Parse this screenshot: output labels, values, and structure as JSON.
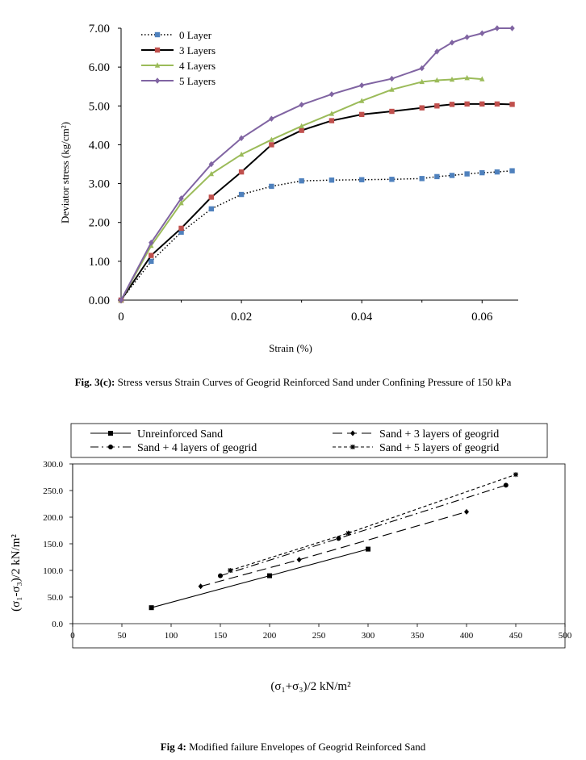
{
  "chart_data": [
    {
      "type": "line",
      "title": "",
      "xlabel": "Strain (%)",
      "ylabel": "Deviator stress  (kg/cm²)",
      "xlim": [
        0,
        0.066
      ],
      "ylim": [
        0,
        7
      ],
      "x_ticks": [
        "0",
        "0.02",
        "0.04",
        "0.06"
      ],
      "x_tick_values": [
        0,
        0.02,
        0.04,
        0.06
      ],
      "y_ticks": [
        "0.00",
        "1.00",
        "2.00",
        "3.00",
        "4.00",
        "5.00",
        "6.00",
        "7.00"
      ],
      "y_tick_values": [
        0,
        1,
        2,
        3,
        4,
        5,
        6,
        7
      ],
      "grid": false,
      "legend_position": "top-left",
      "series": [
        {
          "name": "0 Layer",
          "color": "#4f81bd",
          "line_color": "#000000",
          "line_style": "dotted",
          "marker": "square",
          "points": [
            [
              0,
              0
            ],
            [
              0.005,
              1.0
            ],
            [
              0.01,
              1.75
            ],
            [
              0.015,
              2.35
            ],
            [
              0.02,
              2.72
            ],
            [
              0.025,
              2.93
            ],
            [
              0.03,
              3.07
            ],
            [
              0.035,
              3.09
            ],
            [
              0.04,
              3.1
            ],
            [
              0.045,
              3.11
            ],
            [
              0.05,
              3.13
            ],
            [
              0.0525,
              3.18
            ],
            [
              0.055,
              3.21
            ],
            [
              0.0575,
              3.25
            ],
            [
              0.06,
              3.28
            ],
            [
              0.0625,
              3.3
            ],
            [
              0.065,
              3.33
            ]
          ]
        },
        {
          "name": "3 Layers",
          "color": "#c0504d",
          "line_color": "#000000",
          "line_style": "solid",
          "marker": "square",
          "points": [
            [
              0,
              0
            ],
            [
              0.005,
              1.15
            ],
            [
              0.01,
              1.85
            ],
            [
              0.015,
              2.65
            ],
            [
              0.02,
              3.3
            ],
            [
              0.025,
              4.0
            ],
            [
              0.03,
              4.37
            ],
            [
              0.035,
              4.62
            ],
            [
              0.04,
              4.78
            ],
            [
              0.045,
              4.86
            ],
            [
              0.05,
              4.95
            ],
            [
              0.0525,
              5.0
            ],
            [
              0.055,
              5.04
            ],
            [
              0.0575,
              5.05
            ],
            [
              0.06,
              5.05
            ],
            [
              0.0625,
              5.05
            ],
            [
              0.065,
              5.04
            ]
          ]
        },
        {
          "name": "4 Layers",
          "color": "#9bbb59",
          "line_color": "#9bbb59",
          "line_style": "solid",
          "marker": "triangle",
          "points": [
            [
              0,
              0
            ],
            [
              0.005,
              1.4
            ],
            [
              0.01,
              2.5
            ],
            [
              0.015,
              3.25
            ],
            [
              0.02,
              3.75
            ],
            [
              0.025,
              4.13
            ],
            [
              0.03,
              4.48
            ],
            [
              0.035,
              4.8
            ],
            [
              0.04,
              5.13
            ],
            [
              0.045,
              5.42
            ],
            [
              0.05,
              5.62
            ],
            [
              0.0525,
              5.66
            ],
            [
              0.055,
              5.68
            ],
            [
              0.0575,
              5.72
            ],
            [
              0.06,
              5.69
            ]
          ]
        },
        {
          "name": "5 Layers",
          "color": "#8064a2",
          "line_color": "#8064a2",
          "line_style": "solid",
          "marker": "diamond",
          "points": [
            [
              0,
              0
            ],
            [
              0.005,
              1.48
            ],
            [
              0.01,
              2.62
            ],
            [
              0.015,
              3.5
            ],
            [
              0.02,
              4.17
            ],
            [
              0.025,
              4.67
            ],
            [
              0.03,
              5.03
            ],
            [
              0.035,
              5.3
            ],
            [
              0.04,
              5.53
            ],
            [
              0.045,
              5.7
            ],
            [
              0.05,
              5.97
            ],
            [
              0.0525,
              6.4
            ],
            [
              0.055,
              6.63
            ],
            [
              0.0575,
              6.77
            ],
            [
              0.06,
              6.87
            ],
            [
              0.0625,
              7.0
            ],
            [
              0.065,
              7.0
            ]
          ]
        }
      ]
    },
    {
      "type": "line",
      "title": "",
      "xlabel": "(σ₁+σ₃)/2  kN/m²",
      "ylabel": "(σ₁-σ₃)/2  kN/m²",
      "xlim": [
        0,
        500
      ],
      "ylim": [
        0,
        300
      ],
      "x_ticks": [
        "0",
        "50",
        "100",
        "150",
        "200",
        "250",
        "300",
        "350",
        "400",
        "450",
        "500"
      ],
      "x_tick_values": [
        0,
        50,
        100,
        150,
        200,
        250,
        300,
        350,
        400,
        450,
        500
      ],
      "y_ticks": [
        "0.0",
        "50.0",
        "100.0",
        "150.0",
        "200.0",
        "250.0",
        "300.0"
      ],
      "y_tick_values": [
        0,
        50,
        100,
        150,
        200,
        250,
        300
      ],
      "grid": false,
      "legend_position": "top",
      "series": [
        {
          "name": "Unreinforced Sand",
          "line_style": "solid",
          "marker": "square",
          "points": [
            [
              80,
              30
            ],
            [
              200,
              90
            ],
            [
              300,
              140
            ]
          ]
        },
        {
          "name": "Sand + 3 layers of geogrid",
          "line_style": "longdash",
          "marker": "diamond",
          "points": [
            [
              130,
              70
            ],
            [
              230,
              120
            ],
            [
              400,
              210
            ]
          ]
        },
        {
          "name": "Sand + 4 layers of geogrid",
          "line_style": "dashdot",
          "marker": "circle",
          "points": [
            [
              150,
              90
            ],
            [
              270,
              160
            ],
            [
              440,
              260
            ]
          ]
        },
        {
          "name": "Sand + 5 layers of geogrid",
          "line_style": "shortdash",
          "marker": "star",
          "points": [
            [
              160,
              100
            ],
            [
              280,
              170
            ],
            [
              450,
              280
            ]
          ]
        }
      ]
    }
  ],
  "captions": {
    "fig3_label": "Fig. 3(c):",
    "fig3_text": " Stress versus Strain Curves of Geogrid Reinforced Sand under Confining Pressure of 150 kPa",
    "fig4_label": "Fig 4:",
    "fig4_text": " Modified failure Envelopes of Geogrid Reinforced Sand"
  }
}
